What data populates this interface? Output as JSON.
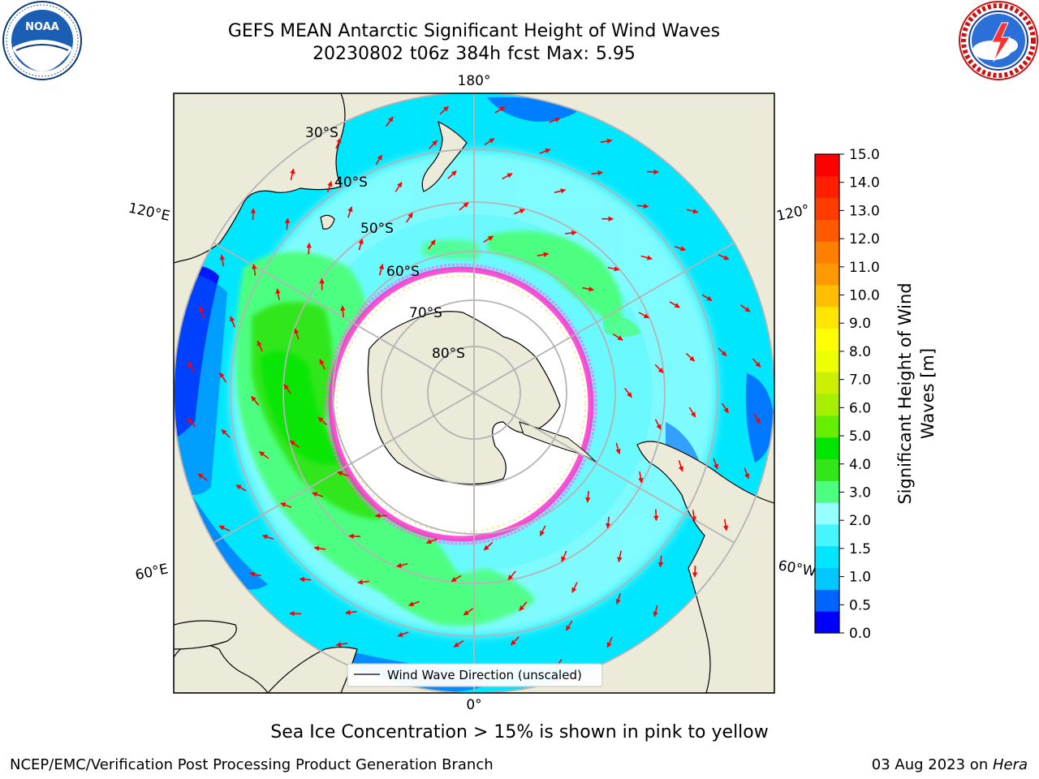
{
  "header": {
    "title_line1": "GEFS MEAN Antarctic Significant Height of Wind Waves",
    "title_line2": "20230802 t06z 384h fcst   Max: 5.95"
  },
  "logos": {
    "left": {
      "name": "noaa-logo",
      "text": "NOAA",
      "ring_text": "NATIONAL OCEANIC AND ATMOSPHERIC ADMINISTRATION · U.S. DEPARTMENT OF COMMERCE"
    },
    "right": {
      "name": "nws-logo",
      "ring_text": "NATIONAL WEATHER SERVICE"
    }
  },
  "map": {
    "projection": "south-polar-stereographic",
    "longitude_labels": {
      "top": "180°",
      "bottom": "0°",
      "upper_left": "120°E",
      "upper_right": "120°",
      "lower_left": "60°E",
      "lower_right": "60°W"
    },
    "latitude_labels": [
      "30°S",
      "40°S",
      "50°S",
      "60°S",
      "70°S",
      "80°S"
    ],
    "legend": {
      "label": "Wind Wave Direction (unscaled)"
    },
    "colors": {
      "land": "#ecebd9",
      "ice_free_no_data": "#ffffff",
      "grid": "#b4b4b4",
      "arrow": "#ff0000",
      "coast": "#000000"
    }
  },
  "colorbar": {
    "title_line1": "Significant Height of Wind",
    "title_line2": "Waves [m]",
    "ticks": [
      "0.0",
      "0.5",
      "1.0",
      "1.5",
      "2.0",
      "3.0",
      "4.0",
      "5.0",
      "6.0",
      "7.0",
      "8.0",
      "9.0",
      "10.0",
      "11.0",
      "12.0",
      "13.0",
      "14.0",
      "15.0"
    ],
    "colors": [
      "#0000ff",
      "#0064ff",
      "#00c8ff",
      "#00e6ff",
      "#46f5ff",
      "#96ffff",
      "#4dff80",
      "#33e61a",
      "#00e600",
      "#66ee00",
      "#a8ee00",
      "#ccee00",
      "#eeff00",
      "#ffff00",
      "#ffe600",
      "#ffbf00",
      "#ff9900",
      "#ff7f00",
      "#ff5a00",
      "#ff3c00",
      "#ff1e00",
      "#ff0000"
    ]
  },
  "chart_data": {
    "type": "heatmap",
    "variable": "Significant Height of Wind Waves",
    "units": "m",
    "colorbar_range": [
      0.0,
      15.0
    ],
    "max_value": 5.95,
    "regions_approx": [
      {
        "region": "Southern Indian Ocean (60°E–120°E, 45°S–60°S)",
        "range_m": [
          3.0,
          5.0
        ]
      },
      {
        "region": "South Pacific (near 60°S)",
        "range_m": [
          3.0,
          4.0
        ]
      },
      {
        "region": "South Atlantic (60°S)",
        "range_m": [
          3.0,
          4.0
        ]
      },
      {
        "region": "Subtropical open ocean",
        "range_m": [
          1.0,
          2.0
        ]
      },
      {
        "region": "Near-coast areas",
        "range_m": [
          0.0,
          1.0
        ]
      }
    ]
  },
  "caption": "Sea Ice Concentration > 15% is shown in pink to yellow",
  "footer": {
    "left": "NCEP/EMC/Verification Post Processing Product Generation Branch",
    "right_prefix": "03 Aug 2023 on ",
    "right_machine": "Hera"
  }
}
